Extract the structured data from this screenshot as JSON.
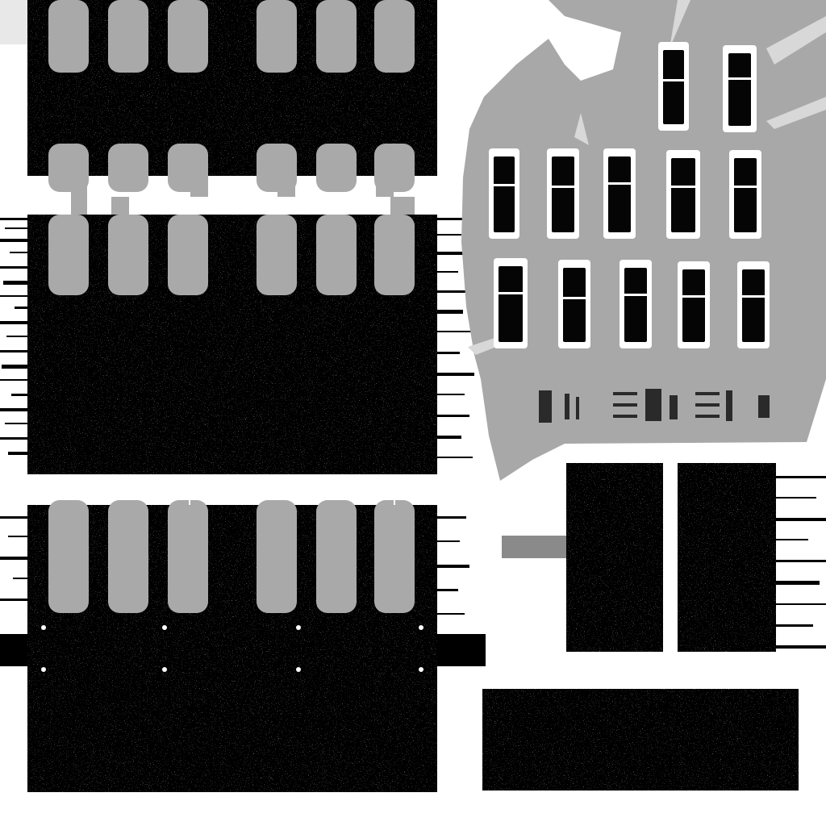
{
  "colors": {
    "background": "#ffffff",
    "dark_panel": "#040404",
    "tab_grey": "#a9a9a9",
    "slab_grey": "#a8a8a8",
    "marker_grey": "#8a8a8a",
    "highlight_white": "#ffffff"
  },
  "regions": {
    "top_left_tab_panel": {
      "tab_count": 6,
      "tab_rows": 2
    },
    "bottom_left_tab_panel": {
      "tab_count": 6,
      "tab_rows": 1
    },
    "pin_slot_island": {
      "slot_count": 12,
      "slot_rows": 3
    },
    "right_dark_panels": {
      "panel_count": 3
    }
  }
}
